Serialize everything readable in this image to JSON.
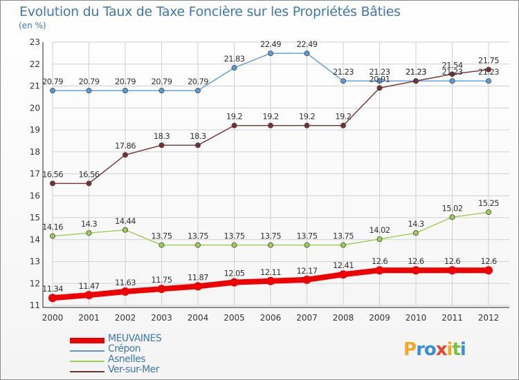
{
  "title": "Evolution du Taux de Taxe Foncière sur les Propriétés Bâties",
  "unit": "(en %)",
  "logo": "Proxiti",
  "chart_data": {
    "type": "line",
    "x": [
      "2000",
      "2001",
      "2002",
      "2003",
      "2004",
      "2005",
      "2006",
      "2007",
      "2008",
      "2009",
      "2010",
      "2011",
      "2012"
    ],
    "ylim": [
      11,
      23
    ],
    "yticks": [
      11,
      12,
      13,
      14,
      15,
      16,
      17,
      18,
      19,
      20,
      21,
      22,
      23
    ],
    "grid": true,
    "legend_position": "bottom-left",
    "series": [
      {
        "name": "MEUVAINES",
        "color": "#ee0000",
        "values": [
          11.34,
          11.47,
          11.63,
          11.75,
          11.87,
          12.05,
          12.11,
          12.17,
          12.41,
          12.6,
          12.6,
          12.6,
          12.6
        ],
        "labels": [
          "11.34",
          "11.47",
          "11.63",
          "11.75",
          "11.87",
          "12.05",
          "12.11",
          "12.17",
          "12.41",
          "12.6",
          "12.6",
          "12.6",
          "12.6"
        ]
      },
      {
        "name": "Crépon",
        "color": "#5b9bd5",
        "values": [
          20.79,
          20.79,
          20.79,
          20.79,
          20.79,
          21.83,
          22.49,
          22.49,
          21.23,
          21.23,
          21.23,
          21.23,
          21.23
        ],
        "labels": [
          "20.79",
          "20.79",
          "20.79",
          "20.79",
          "20.79",
          "21.83",
          "22.49",
          "22.49",
          "21.23",
          "21.23",
          "21.23",
          "21.23",
          "21.23"
        ]
      },
      {
        "name": "Asnelles",
        "color": "#9acd50",
        "values": [
          14.16,
          14.3,
          14.44,
          13.75,
          13.75,
          13.75,
          13.75,
          13.75,
          13.75,
          14.02,
          14.3,
          15.02,
          15.25
        ],
        "labels": [
          "14.16",
          "14.3",
          "14.44",
          "13.75",
          "13.75",
          "13.75",
          "13.75",
          "13.75",
          "13.75",
          "14.02",
          "14.3",
          "15.02",
          "15.25"
        ]
      },
      {
        "name": "Ver-sur-Mer",
        "color": "#7a2e2e",
        "values": [
          16.56,
          16.56,
          17.86,
          18.3,
          18.3,
          19.2,
          19.2,
          19.2,
          19.2,
          20.91,
          21.23,
          21.54,
          21.75
        ],
        "labels": [
          "16.56",
          "16.56",
          "17.86",
          "18.3",
          "18.3",
          "19.2",
          "19.2",
          "19.2",
          "19.2",
          "20.91",
          "21.23",
          "21.54",
          "21.75"
        ]
      }
    ]
  }
}
